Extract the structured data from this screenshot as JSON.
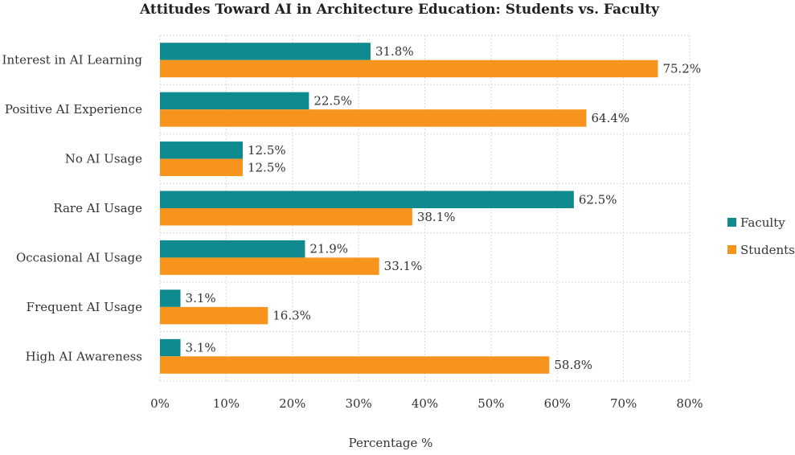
{
  "chart_data": {
    "type": "bar",
    "orientation": "horizontal",
    "title": "Attitudes Toward AI in Architecture Education: Students vs. Faculty",
    "xlabel": "Percentage %",
    "ylabel": "",
    "xlim": [
      0,
      80
    ],
    "x_ticks": [
      "0%",
      "10%",
      "20%",
      "30%",
      "40%",
      "50%",
      "60%",
      "70%",
      "80%"
    ],
    "grid": true,
    "legend_position": "right",
    "categories": [
      "Interest in AI Learning",
      "Positive AI Experience",
      "No AI Usage",
      "Rare AI Usage",
      "Occasional AI Usage",
      "Frequent AI Usage",
      "High AI Awareness"
    ],
    "series": [
      {
        "name": "Faculty",
        "color": "#0f8a8f",
        "values": [
          31.8,
          22.5,
          12.5,
          62.5,
          21.9,
          3.1,
          3.1
        ],
        "labels": [
          "31.8%",
          "22.5%",
          "12.5%",
          "62.5%",
          "21.9%",
          "3.1%",
          "3.1%"
        ]
      },
      {
        "name": "Students",
        "color": "#f7941d",
        "values": [
          75.2,
          64.4,
          12.5,
          38.1,
          33.1,
          16.3,
          58.8
        ],
        "labels": [
          "75.2%",
          "64.4%",
          "12.5%",
          "38.1%",
          "33.1%",
          "16.3%",
          "58.8%"
        ]
      }
    ]
  }
}
